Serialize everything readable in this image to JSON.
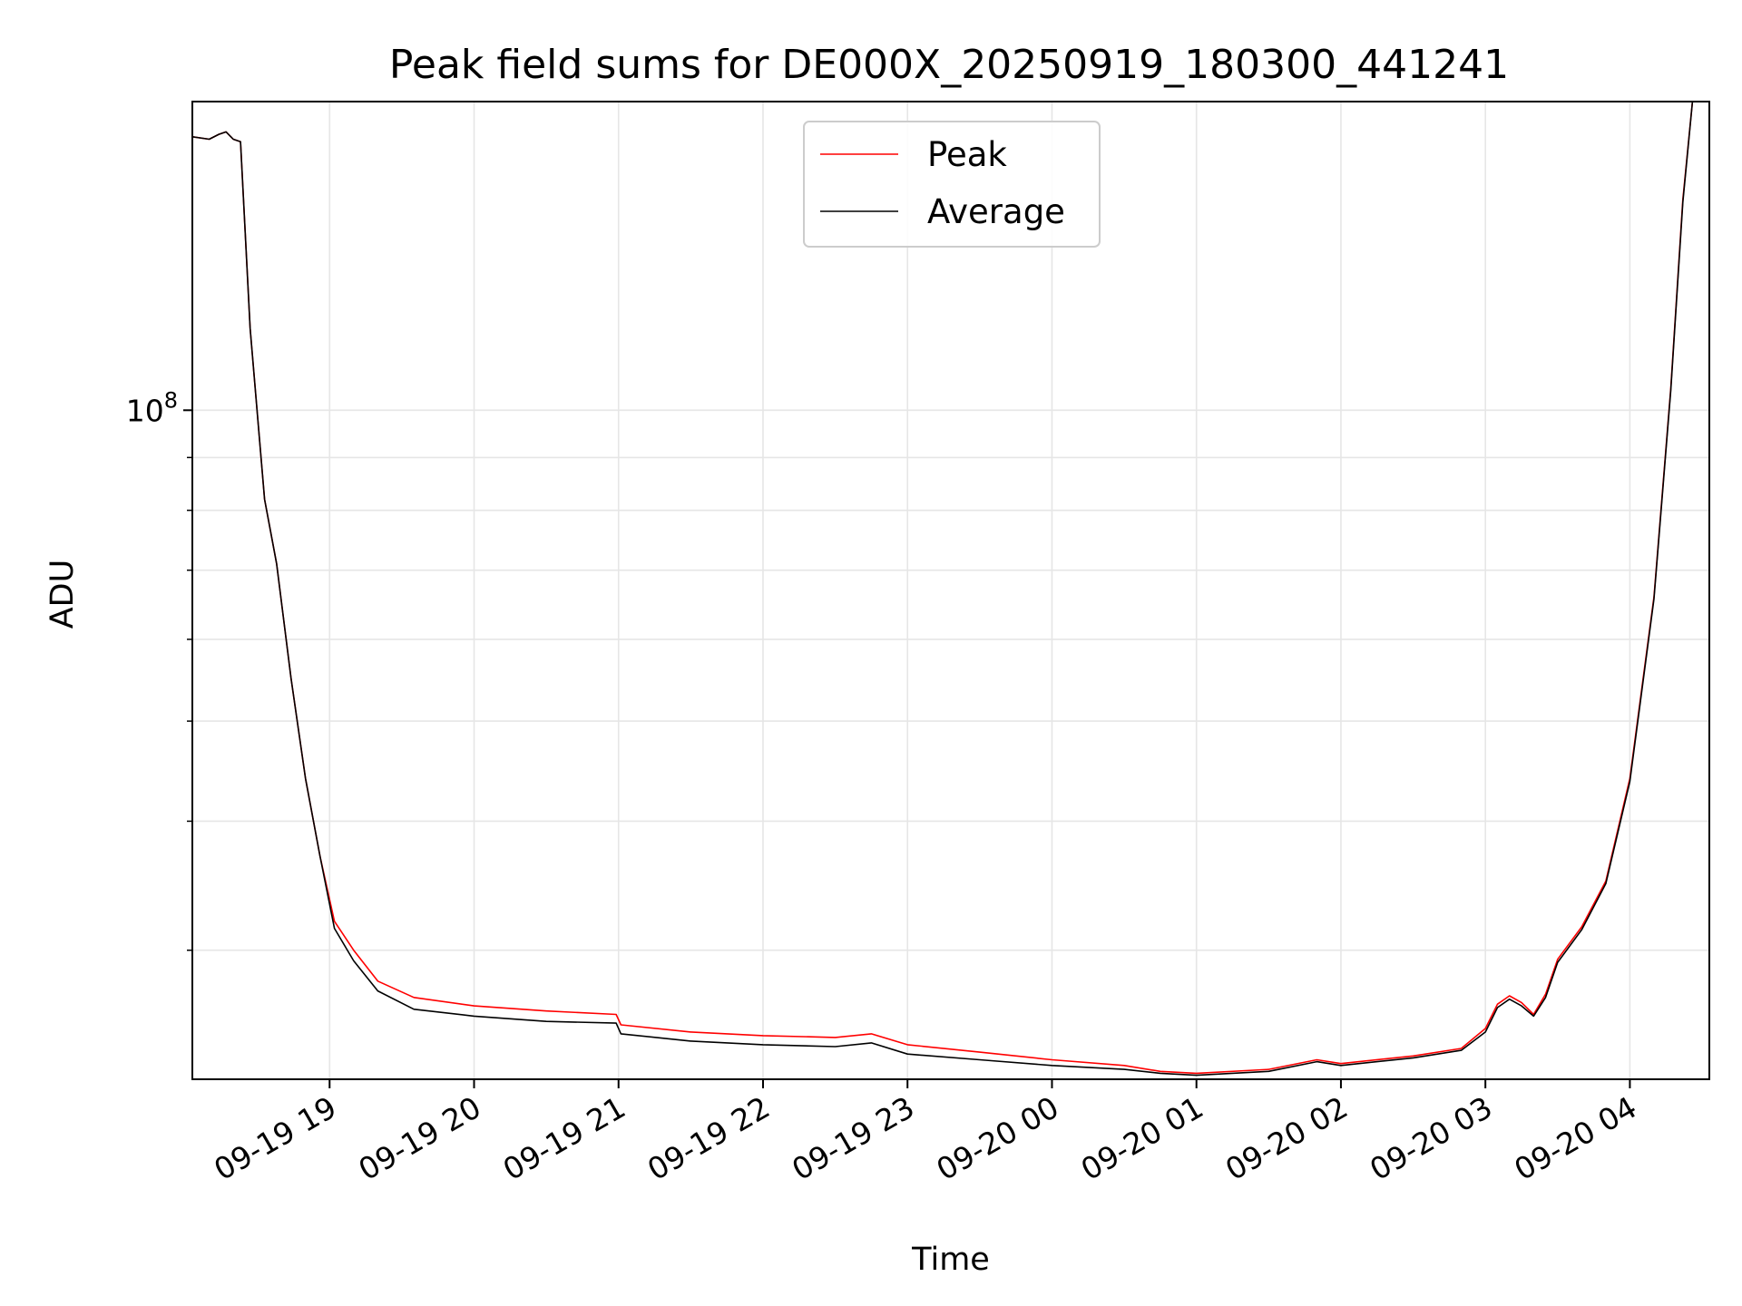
{
  "chart_data": {
    "type": "line",
    "title": "Peak field sums for DE000X_20250919_180300_441241",
    "xlabel": "Time",
    "ylabel": "ADU",
    "x_scale": "time",
    "y_scale": "log",
    "xlim": [
      "2025-09-19 18:03",
      "2025-09-20 04:33"
    ],
    "ylim": [
      22500000,
      199000000
    ],
    "x_ticks": [
      {
        "value": "2025-09-19 19:00",
        "label": "09-19 19"
      },
      {
        "value": "2025-09-19 20:00",
        "label": "09-19 20"
      },
      {
        "value": "2025-09-19 21:00",
        "label": "09-19 21"
      },
      {
        "value": "2025-09-19 22:00",
        "label": "09-19 22"
      },
      {
        "value": "2025-09-19 23:00",
        "label": "09-19 23"
      },
      {
        "value": "2025-09-20 00:00",
        "label": "09-20 00"
      },
      {
        "value": "2025-09-20 01:00",
        "label": "09-20 01"
      },
      {
        "value": "2025-09-20 02:00",
        "label": "09-20 02"
      },
      {
        "value": "2025-09-20 03:00",
        "label": "09-20 03"
      },
      {
        "value": "2025-09-20 04:00",
        "label": "09-20 04"
      }
    ],
    "y_major_ticks": [
      {
        "value": 100000000,
        "label_base": "10",
        "label_exp": "8"
      }
    ],
    "y_minor_ticks": [
      30000000,
      40000000,
      50000000,
      60000000,
      70000000,
      80000000,
      90000000
    ],
    "grid": true,
    "legend_position": "upper center",
    "colors": {
      "peak": "#ff0000",
      "average": "#000000"
    },
    "series": [
      {
        "name": "Peak",
        "color": "#ff0000",
        "x": [
          "2025-09-19 18:03",
          "2025-09-19 18:10",
          "2025-09-19 18:14",
          "2025-09-19 18:17",
          "2025-09-19 18:20",
          "2025-09-19 18:23",
          "2025-09-19 18:27",
          "2025-09-19 18:33",
          "2025-09-19 18:38",
          "2025-09-19 18:44",
          "2025-09-19 18:50",
          "2025-09-19 18:56",
          "2025-09-19 19:02",
          "2025-09-19 19:10",
          "2025-09-19 19:20",
          "2025-09-19 19:35",
          "2025-09-19 20:00",
          "2025-09-19 20:30",
          "2025-09-19 20:59",
          "2025-09-19 21:01",
          "2025-09-19 21:30",
          "2025-09-19 22:00",
          "2025-09-19 22:30",
          "2025-09-19 22:45",
          "2025-09-19 23:00",
          "2025-09-19 23:30",
          "2025-09-20 00:00",
          "2025-09-20 00:30",
          "2025-09-20 00:45",
          "2025-09-20 01:00",
          "2025-09-20 01:30",
          "2025-09-20 01:50",
          "2025-09-20 02:00",
          "2025-09-20 02:30",
          "2025-09-20 02:50",
          "2025-09-20 03:00",
          "2025-09-20 03:05",
          "2025-09-20 03:10",
          "2025-09-20 03:15",
          "2025-09-20 03:20",
          "2025-09-20 03:25",
          "2025-09-20 03:30",
          "2025-09-20 03:40",
          "2025-09-20 03:50",
          "2025-09-20 04:00",
          "2025-09-20 04:10",
          "2025-09-20 04:17",
          "2025-09-20 04:22",
          "2025-09-20 04:26"
        ],
        "y": [
          184000000,
          183000000,
          185000000,
          186000000,
          183000000,
          182000000,
          120000000,
          82000000,
          71000000,
          55000000,
          44000000,
          37000000,
          32000000,
          30000000,
          28000000,
          27000000,
          26500000,
          26200000,
          26000000,
          25400000,
          25000000,
          24800000,
          24700000,
          24900000,
          24300000,
          23900000,
          23500000,
          23200000,
          22900000,
          22800000,
          23000000,
          23500000,
          23300000,
          23700000,
          24100000,
          25200000,
          26600000,
          27100000,
          26700000,
          26000000,
          27200000,
          29400000,
          31600000,
          35000000,
          44000000,
          66000000,
          105000000,
          160000000,
          199000000
        ]
      },
      {
        "name": "Average",
        "color": "#000000",
        "x": [
          "2025-09-19 18:03",
          "2025-09-19 18:10",
          "2025-09-19 18:14",
          "2025-09-19 18:17",
          "2025-09-19 18:20",
          "2025-09-19 18:23",
          "2025-09-19 18:27",
          "2025-09-19 18:33",
          "2025-09-19 18:38",
          "2025-09-19 18:44",
          "2025-09-19 18:50",
          "2025-09-19 18:56",
          "2025-09-19 19:02",
          "2025-09-19 19:10",
          "2025-09-19 19:20",
          "2025-09-19 19:35",
          "2025-09-19 20:00",
          "2025-09-19 20:30",
          "2025-09-19 20:59",
          "2025-09-19 21:01",
          "2025-09-19 21:30",
          "2025-09-19 22:00",
          "2025-09-19 22:30",
          "2025-09-19 22:45",
          "2025-09-19 23:00",
          "2025-09-19 23:30",
          "2025-09-20 00:00",
          "2025-09-20 00:30",
          "2025-09-20 00:45",
          "2025-09-20 01:00",
          "2025-09-20 01:30",
          "2025-09-20 01:50",
          "2025-09-20 02:00",
          "2025-09-20 02:30",
          "2025-09-20 02:50",
          "2025-09-20 03:00",
          "2025-09-20 03:05",
          "2025-09-20 03:10",
          "2025-09-20 03:15",
          "2025-09-20 03:20",
          "2025-09-20 03:25",
          "2025-09-20 03:30",
          "2025-09-20 03:40",
          "2025-09-20 03:50",
          "2025-09-20 04:00",
          "2025-09-20 04:10",
          "2025-09-20 04:17",
          "2025-09-20 04:22",
          "2025-09-20 04:26"
        ],
        "y": [
          184000000,
          183000000,
          185000000,
          186000000,
          183000000,
          182000000,
          120000000,
          82000000,
          71000000,
          55000000,
          44000000,
          37000000,
          31500000,
          29300000,
          27400000,
          26300000,
          25900000,
          25600000,
          25500000,
          24900000,
          24500000,
          24300000,
          24200000,
          24400000,
          23800000,
          23500000,
          23200000,
          23000000,
          22800000,
          22700000,
          22900000,
          23400000,
          23200000,
          23600000,
          24000000,
          25000000,
          26400000,
          26900000,
          26500000,
          25900000,
          27000000,
          29200000,
          31400000,
          34800000,
          43700000,
          65700000,
          104500000,
          159000000,
          199000000
        ]
      }
    ]
  }
}
